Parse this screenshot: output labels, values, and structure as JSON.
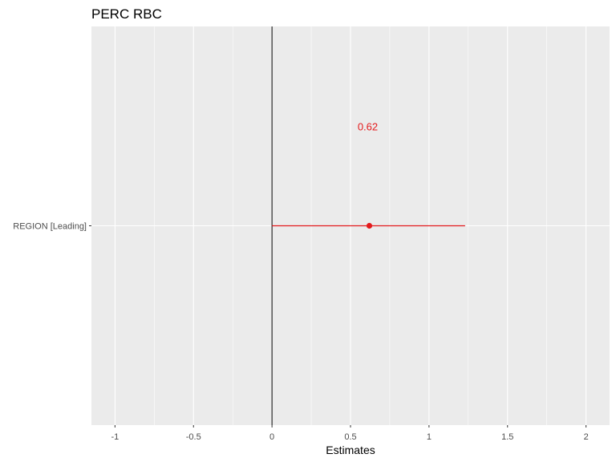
{
  "chart_data": {
    "type": "scatter",
    "title": "PERC RBC",
    "xlabel": "Estimates",
    "ylabel": "",
    "xlim": [
      -1.15,
      2.15
    ],
    "x_ticks": [
      -1,
      -0.5,
      0,
      0.5,
      1,
      1.5,
      2
    ],
    "x_tick_labels": [
      "-1",
      "-0.5",
      "0",
      "0.5",
      "1",
      "1.5",
      "2"
    ],
    "reference_line": 0,
    "grid": true,
    "categories": [
      "REGION [Leading]"
    ],
    "series": [
      {
        "estimates": [
          0.62
        ],
        "ci_low": [
          0.0
        ],
        "ci_high": [
          1.23
        ],
        "labels": [
          "0.62"
        ],
        "color": "#e41a1c"
      }
    ]
  },
  "colors": {
    "panel": "#ebebeb",
    "grid": "#ffffff",
    "point": "#e41a1c",
    "reference_line": "#000000"
  }
}
